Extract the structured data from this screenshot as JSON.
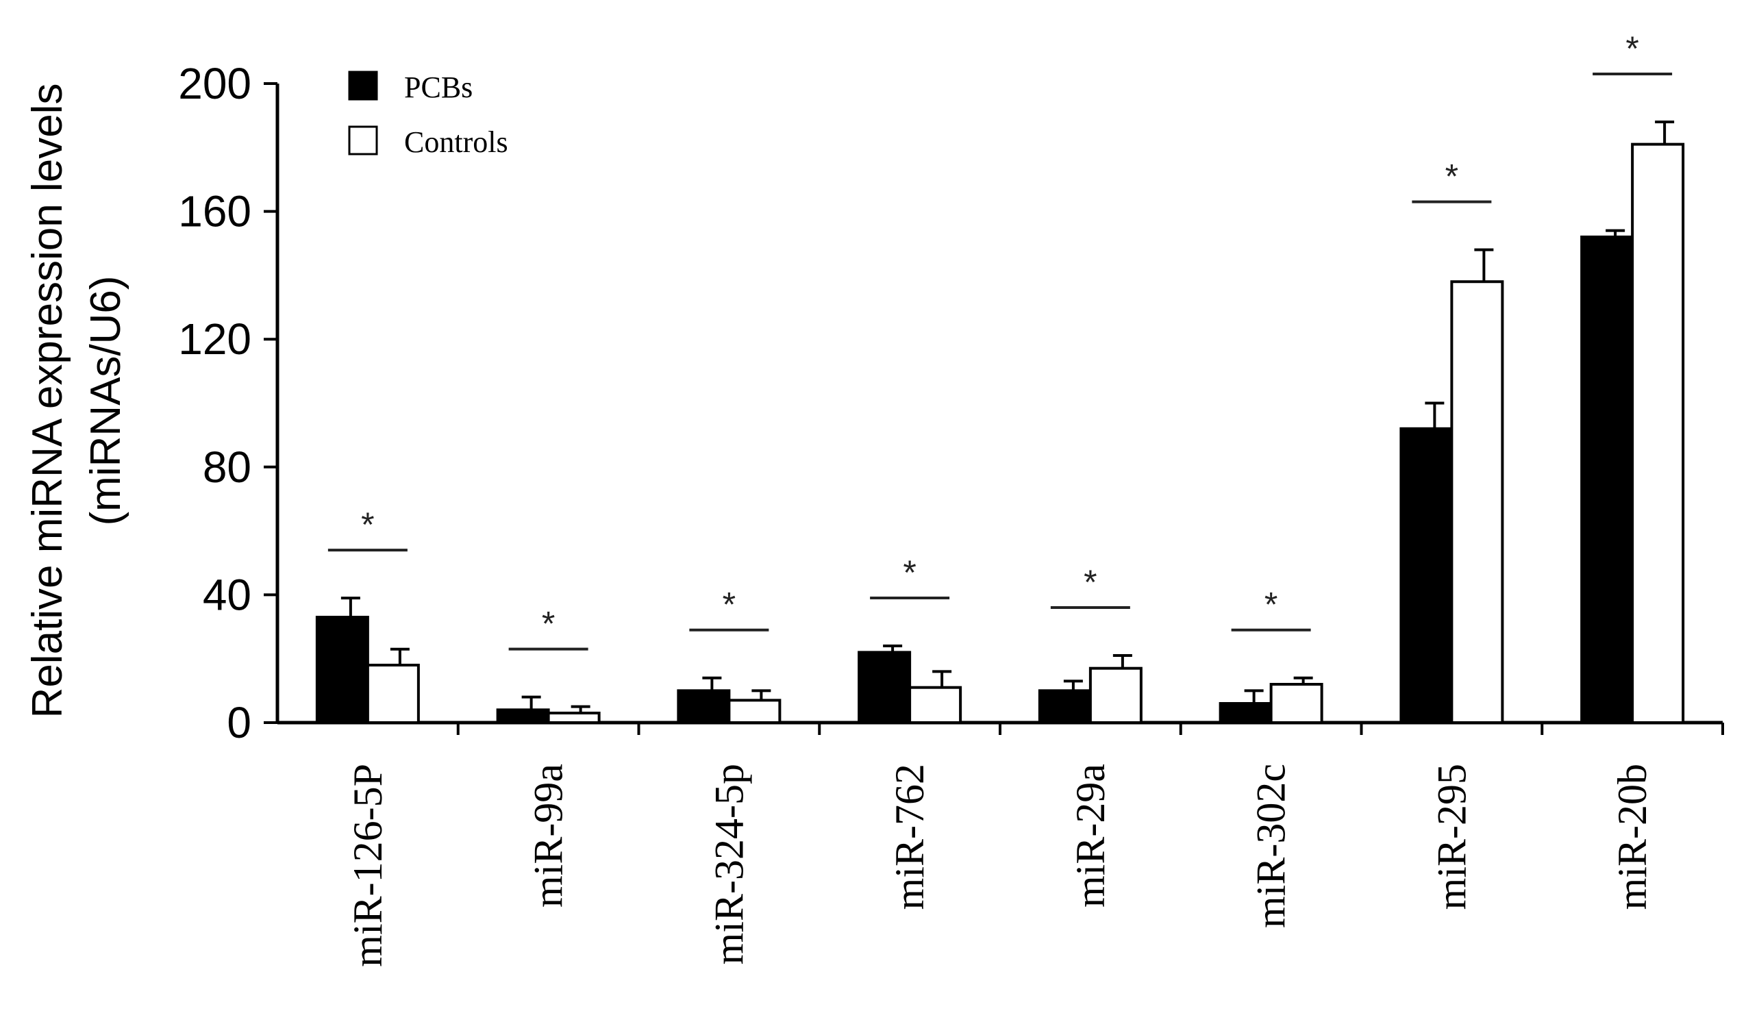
{
  "chart_data": {
    "type": "bar",
    "title": "",
    "ylabel_line1": "Relative miRNA expression levels",
    "ylabel_line2": "(miRNAs/U6)",
    "xlabel": "",
    "ylim": [
      0,
      200
    ],
    "yticks": [
      "0",
      "40",
      "80",
      "120",
      "160",
      "200"
    ],
    "grid": false,
    "legend_position": "top-left",
    "categories": [
      "miR-126-5P",
      "miR-99a",
      "miR-324-5p",
      "miR-762",
      "miR-29a",
      "miR-302c",
      "miR-295",
      "miR-20b"
    ],
    "series": [
      {
        "name": "PCBs",
        "color": "#000000",
        "values": [
          33,
          4,
          10,
          22,
          10,
          6,
          92,
          152
        ],
        "errors": [
          6,
          4,
          4,
          2,
          3,
          4,
          8,
          2
        ]
      },
      {
        "name": "Controls",
        "color": "#ffffff",
        "values": [
          18,
          3,
          7,
          11,
          17,
          12,
          138,
          181
        ],
        "errors": [
          5,
          2,
          3,
          5,
          4,
          2,
          10,
          7
        ]
      }
    ],
    "significance_marks": [
      "*",
      "*",
      "*",
      "*",
      "*",
      "*",
      "*",
      "*"
    ]
  }
}
